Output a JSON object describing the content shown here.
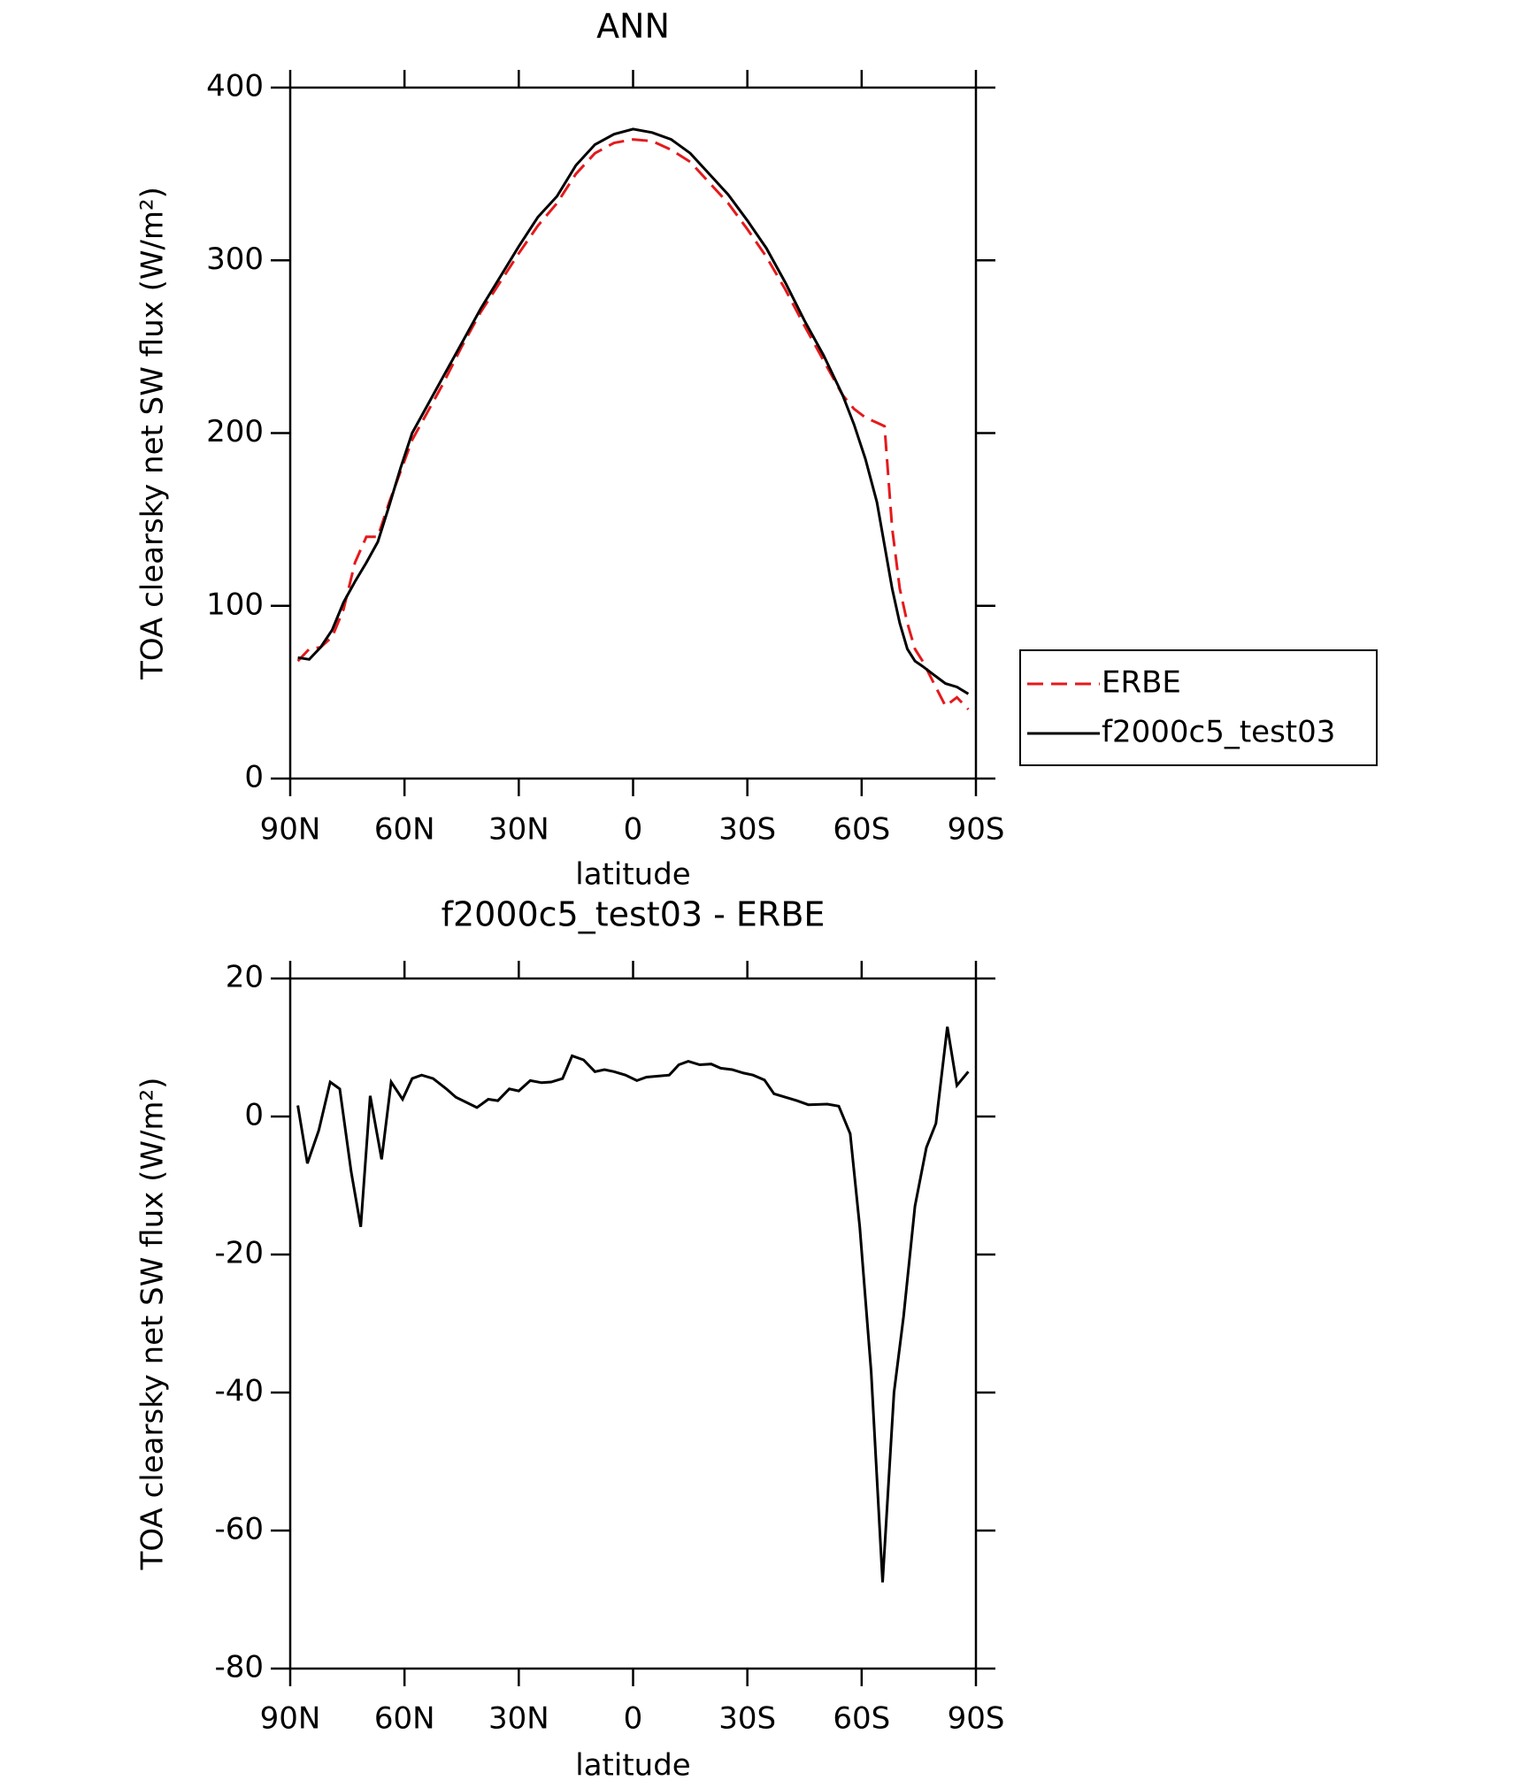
{
  "chart_data": [
    {
      "type": "line",
      "title": "ANN",
      "x_label": "latitude",
      "y_label": "TOA clearsky net SW flux (W/m²)",
      "x": [
        88,
        85,
        82,
        79,
        76,
        73,
        70,
        67,
        64,
        61,
        58,
        55,
        50,
        45,
        40,
        35,
        30,
        25,
        20,
        15,
        10,
        5,
        0,
        -5,
        -10,
        -15,
        -20,
        -25,
        -30,
        -35,
        -40,
        -45,
        -50,
        -55,
        -58,
        -61,
        -64,
        -66,
        -68,
        -70,
        -72,
        -74,
        -76,
        -79,
        -82,
        -85,
        -88
      ],
      "series": [
        {
          "name": "ERBE",
          "color": "#e41a1c",
          "dashed": true,
          "values": [
            68,
            75,
            76,
            82,
            98,
            125,
            140,
            140,
            160,
            178,
            196,
            208,
            228,
            250,
            270,
            287,
            304,
            320,
            333,
            350,
            362,
            368,
            370,
            369,
            364,
            357,
            345,
            333,
            318,
            302,
            283,
            262,
            242,
            222,
            214,
            209,
            206,
            204,
            145,
            110,
            90,
            75,
            68,
            55,
            42,
            47,
            40
          ]
        },
        {
          "name": "f2000c5_test03",
          "color": "#000000",
          "dashed": false,
          "values": [
            70,
            69,
            76,
            86,
            102,
            114,
            125,
            137,
            158,
            180,
            200,
            212,
            232,
            252,
            272,
            290,
            308,
            325,
            337,
            355,
            367,
            373,
            376,
            374,
            370,
            362,
            350,
            338,
            323,
            307,
            287,
            265,
            245,
            222,
            205,
            185,
            160,
            135,
            110,
            90,
            75,
            68,
            65,
            60,
            55,
            53,
            49
          ]
        }
      ],
      "xlim": [
        90,
        -90
      ],
      "xticks": [
        {
          "value": 90,
          "label": "90N"
        },
        {
          "value": 60,
          "label": "60N"
        },
        {
          "value": 30,
          "label": "30N"
        },
        0,
        {
          "value": -30,
          "label": "30S"
        },
        {
          "value": -60,
          "label": "60S"
        },
        {
          "value": -90,
          "label": "90S"
        }
      ],
      "ylim": [
        0,
        400
      ],
      "yticks": [
        0,
        100,
        200,
        300,
        400
      ],
      "legend": "right"
    },
    {
      "type": "line",
      "title": "f2000c5_test03 - ERBE",
      "x_label": "latitude",
      "y_label": "TOA clearsky net SW flux (W/m²)",
      "x": [
        88,
        85.5,
        82.5,
        79.5,
        77,
        74,
        71.5,
        69,
        66,
        63.5,
        60.5,
        58,
        55.5,
        52.5,
        49,
        46.5,
        41,
        38,
        35.5,
        32.5,
        30,
        27,
        24,
        21.5,
        18.5,
        16,
        13,
        10,
        7.5,
        5,
        2,
        -1,
        -3.5,
        -9.5,
        -12,
        -14.5,
        -17.5,
        -20.5,
        -23,
        -26,
        -29,
        -31.5,
        -34.5,
        -37,
        -40,
        -43,
        -46,
        -51,
        -54,
        -57,
        -59.5,
        -62.5,
        -65.5,
        -68.5,
        -71,
        -74,
        -77,
        -79.5,
        -82.5,
        -85,
        -88
      ],
      "values": [
        1.6,
        -6.8,
        -2,
        5,
        4,
        -8,
        -16,
        3,
        -6.2,
        5,
        2.5,
        5.5,
        6,
        5.5,
        4,
        2.8,
        1.3,
        2.5,
        2.3,
        4,
        3.7,
        5.2,
        4.9,
        5,
        5.5,
        8.8,
        8.2,
        6.5,
        6.8,
        6.5,
        6,
        5.2,
        5.7,
        6,
        7.5,
        8,
        7.5,
        7.6,
        7,
        6.8,
        6.3,
        6,
        5.3,
        3.3,
        2.8,
        2.3,
        1.7,
        1.8,
        1.5,
        -2.5,
        -16,
        -37,
        -67.5,
        -40,
        -29,
        -13,
        -4.5,
        -1,
        13,
        4.5,
        6.5
      ],
      "color": "#000000",
      "xlim": [
        90,
        -90
      ],
      "xticks": [
        {
          "value": 90,
          "label": "90N"
        },
        {
          "value": 60,
          "label": "60N"
        },
        {
          "value": 30,
          "label": "30N"
        },
        0,
        {
          "value": -30,
          "label": "30S"
        },
        {
          "value": -60,
          "label": "60S"
        },
        {
          "value": -90,
          "label": "90S"
        }
      ],
      "ylim": [
        -80,
        20
      ],
      "yticks": [
        -80,
        -60,
        -40,
        -20,
        0,
        20
      ]
    }
  ]
}
